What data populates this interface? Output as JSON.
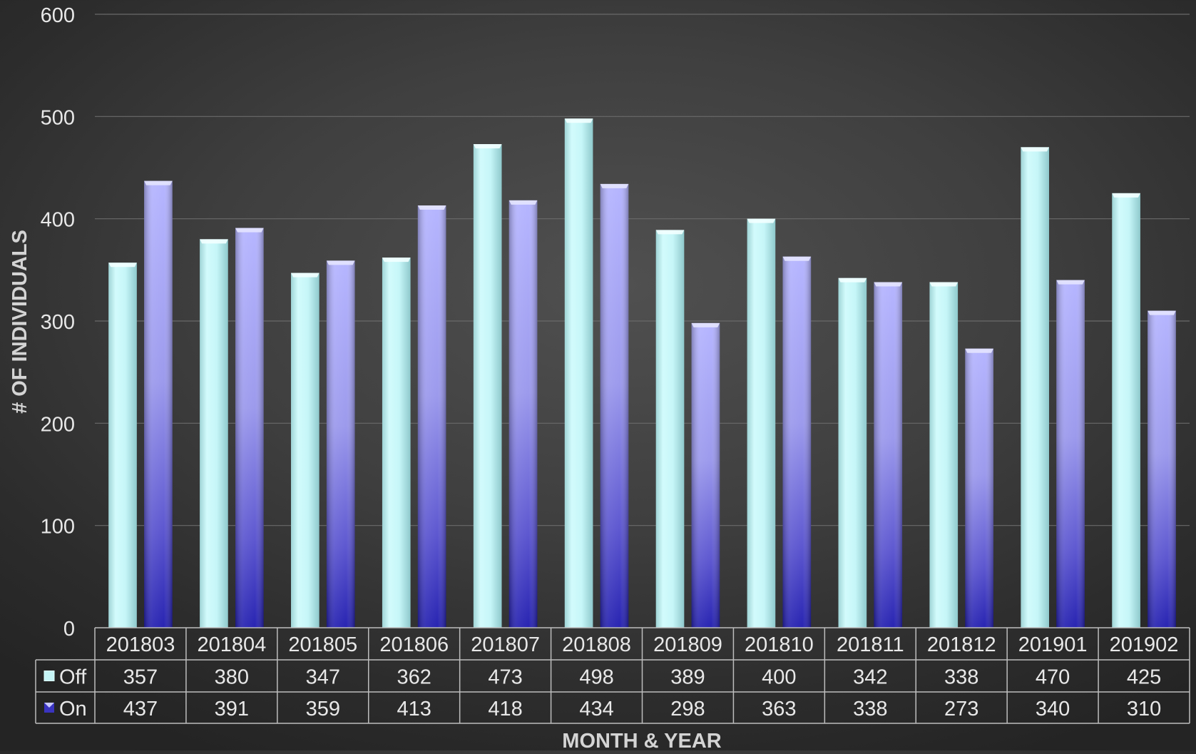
{
  "chart_data": {
    "type": "bar",
    "title": "",
    "xlabel": "MONTH & YEAR",
    "ylabel": "# OF INDIVIDUALS",
    "ylim": [
      0,
      600
    ],
    "yticks": [
      0,
      100,
      200,
      300,
      400,
      500,
      600
    ],
    "grid": true,
    "legend": "data-table-left",
    "categories": [
      "201803",
      "201804",
      "201805",
      "201806",
      "201807",
      "201808",
      "201809",
      "201810",
      "201811",
      "201812",
      "201901",
      "201902"
    ],
    "series": [
      {
        "name": "Off",
        "values": [
          357,
          380,
          347,
          362,
          473,
          498,
          389,
          400,
          342,
          338,
          470,
          425
        ],
        "color": "#c4f4f6"
      },
      {
        "name": "On",
        "values": [
          437,
          391,
          359,
          413,
          418,
          434,
          298,
          363,
          338,
          273,
          340,
          310
        ],
        "color": "#8f8ce8"
      }
    ],
    "colors": {
      "text": "#e8e8e8",
      "axis_title": "#d4d4d4",
      "grid": "#6a6a6a",
      "table_border": "#bdbdbd"
    }
  }
}
